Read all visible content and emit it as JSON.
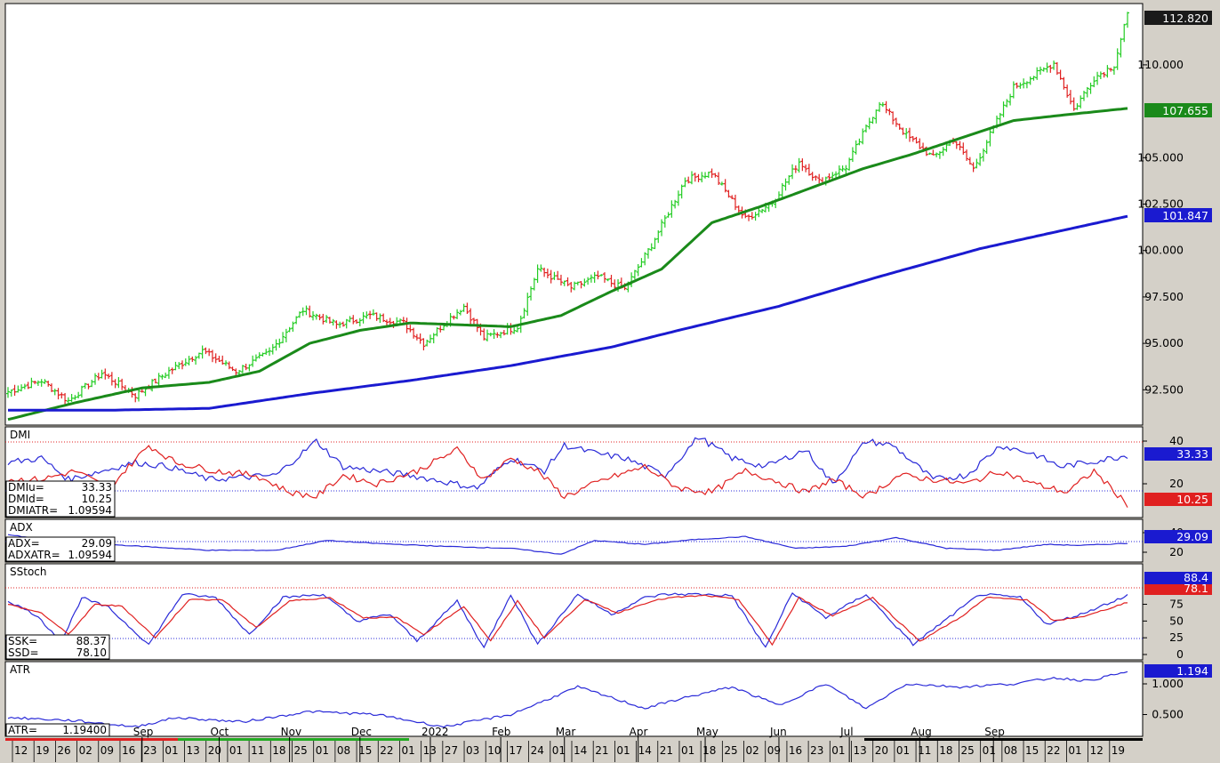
{
  "colors": {
    "up_bar": "#22cc22",
    "down_bar": "#e02020",
    "ma_short": "#1a8a1a",
    "ma_long": "#1a1ad0",
    "dmi_plus": "#2a2ad8",
    "dmi_minus": "#e02020",
    "price_tag": "#1a1a1a",
    "ma_short_tag": "#1a8a1a",
    "ma_long_tag": "#1a1ad0",
    "blue_tag": "#1a1ad0",
    "red_tag": "#e02020"
  },
  "chart_data": {
    "type": "candlestick",
    "price": {
      "scale": [
        90.6,
        113.3
      ],
      "ticks": [
        "92.500",
        "95.000",
        "97.500",
        "100.000",
        "102.500",
        "105.000",
        "110.000"
      ],
      "last_price": "112.820",
      "ma_short_value": "107.655",
      "ma_long_value": "101.847",
      "series_anchors": [
        [
          0,
          92.4
        ],
        [
          10,
          93.0
        ],
        [
          18,
          91.9
        ],
        [
          28,
          93.4
        ],
        [
          38,
          92.2
        ],
        [
          48,
          93.5
        ],
        [
          58,
          94.6
        ],
        [
          68,
          93.5
        ],
        [
          78,
          94.5
        ],
        [
          88,
          96.8
        ],
        [
          98,
          96.0
        ],
        [
          108,
          96.5
        ],
        [
          118,
          96.1
        ],
        [
          124,
          95.0
        ],
        [
          132,
          96.4
        ],
        [
          136,
          97.0
        ],
        [
          142,
          95.3
        ],
        [
          152,
          95.9
        ],
        [
          158,
          99.0
        ],
        [
          168,
          98.0
        ],
        [
          176,
          98.6
        ],
        [
          184,
          97.9
        ],
        [
          192,
          100.3
        ],
        [
          202,
          103.8
        ],
        [
          210,
          104.2
        ],
        [
          220,
          101.7
        ],
        [
          228,
          102.6
        ],
        [
          236,
          104.8
        ],
        [
          242,
          103.7
        ],
        [
          250,
          104.5
        ],
        [
          260,
          108.0
        ],
        [
          268,
          106.2
        ],
        [
          276,
          105.0
        ],
        [
          282,
          106.0
        ],
        [
          288,
          104.4
        ],
        [
          300,
          108.8
        ],
        [
          306,
          109.4
        ],
        [
          312,
          110.1
        ],
        [
          318,
          107.6
        ],
        [
          324,
          109.3
        ],
        [
          330,
          110.0
        ],
        [
          334,
          112.8
        ]
      ],
      "ma_short_anchors": [
        [
          0,
          90.9
        ],
        [
          20,
          91.8
        ],
        [
          40,
          92.6
        ],
        [
          60,
          92.9
        ],
        [
          75,
          93.5
        ],
        [
          90,
          95.0
        ],
        [
          105,
          95.7
        ],
        [
          120,
          96.1
        ],
        [
          135,
          96.0
        ],
        [
          150,
          95.9
        ],
        [
          165,
          96.5
        ],
        [
          180,
          97.8
        ],
        [
          195,
          99.0
        ],
        [
          210,
          101.5
        ],
        [
          225,
          102.4
        ],
        [
          240,
          103.4
        ],
        [
          255,
          104.4
        ],
        [
          270,
          105.2
        ],
        [
          285,
          106.1
        ],
        [
          300,
          107.0
        ],
        [
          315,
          107.3
        ],
        [
          334,
          107.655
        ]
      ],
      "ma_long_anchors": [
        [
          0,
          91.4
        ],
        [
          30,
          91.4
        ],
        [
          60,
          91.5
        ],
        [
          90,
          92.3
        ],
        [
          120,
          93.0
        ],
        [
          150,
          93.8
        ],
        [
          180,
          94.8
        ],
        [
          200,
          95.7
        ],
        [
          230,
          97.0
        ],
        [
          260,
          98.6
        ],
        [
          290,
          100.1
        ],
        [
          310,
          100.9
        ],
        [
          334,
          101.847
        ]
      ]
    },
    "dmi": {
      "label": "DMI",
      "ticks": [
        "40",
        "20"
      ],
      "readouts": [
        {
          "label": "DMIu=",
          "value": "33.33"
        },
        {
          "label": "DMId=",
          "value": "10.25"
        },
        {
          "label": "DMIATR=",
          "value": "1.09594"
        }
      ],
      "plus_last": "33.33",
      "minus_last": "10.25",
      "plus_anchors": [
        [
          0,
          30
        ],
        [
          10,
          32
        ],
        [
          18,
          22
        ],
        [
          28,
          26
        ],
        [
          38,
          30
        ],
        [
          48,
          28
        ],
        [
          60,
          22
        ],
        [
          80,
          24
        ],
        [
          92,
          40
        ],
        [
          100,
          28
        ],
        [
          110,
          26
        ],
        [
          120,
          24
        ],
        [
          130,
          21
        ],
        [
          140,
          18
        ],
        [
          150,
          32
        ],
        [
          160,
          26
        ],
        [
          166,
          38
        ],
        [
          176,
          34
        ],
        [
          184,
          32
        ],
        [
          196,
          24
        ],
        [
          206,
          42
        ],
        [
          216,
          32
        ],
        [
          226,
          28
        ],
        [
          238,
          36
        ],
        [
          246,
          20
        ],
        [
          256,
          40
        ],
        [
          264,
          38
        ],
        [
          276,
          22
        ],
        [
          286,
          24
        ],
        [
          296,
          38
        ],
        [
          306,
          34
        ],
        [
          314,
          28
        ],
        [
          322,
          30
        ],
        [
          334,
          33.33
        ]
      ],
      "minus_anchors": [
        [
          0,
          22
        ],
        [
          10,
          22
        ],
        [
          20,
          26
        ],
        [
          30,
          18
        ],
        [
          42,
          38
        ],
        [
          50,
          30
        ],
        [
          62,
          26
        ],
        [
          74,
          24
        ],
        [
          84,
          16
        ],
        [
          92,
          14
        ],
        [
          100,
          24
        ],
        [
          110,
          20
        ],
        [
          122,
          26
        ],
        [
          134,
          36
        ],
        [
          142,
          22
        ],
        [
          150,
          32
        ],
        [
          158,
          26
        ],
        [
          166,
          14
        ],
        [
          178,
          22
        ],
        [
          190,
          28
        ],
        [
          200,
          18
        ],
        [
          210,
          16
        ],
        [
          220,
          26
        ],
        [
          228,
          22
        ],
        [
          238,
          16
        ],
        [
          246,
          22
        ],
        [
          256,
          14
        ],
        [
          266,
          24
        ],
        [
          276,
          22
        ],
        [
          286,
          20
        ],
        [
          296,
          26
        ],
        [
          306,
          20
        ],
        [
          316,
          16
        ],
        [
          324,
          26
        ],
        [
          334,
          10.25
        ]
      ]
    },
    "adx": {
      "label": "ADX",
      "ticks": [
        "40",
        "20"
      ],
      "readouts": [
        {
          "label": "ADX=",
          "value": "29.09"
        },
        {
          "label": "ADXATR=",
          "value": "1.09594"
        }
      ],
      "last": "29.09",
      "anchors": [
        [
          0,
          38
        ],
        [
          12,
          32
        ],
        [
          30,
          28
        ],
        [
          45,
          25
        ],
        [
          60,
          22
        ],
        [
          80,
          22
        ],
        [
          95,
          32
        ],
        [
          110,
          29
        ],
        [
          130,
          26
        ],
        [
          150,
          24
        ],
        [
          165,
          18
        ],
        [
          175,
          32
        ],
        [
          190,
          28
        ],
        [
          205,
          33
        ],
        [
          220,
          36
        ],
        [
          235,
          24
        ],
        [
          250,
          26
        ],
        [
          265,
          35
        ],
        [
          280,
          24
        ],
        [
          295,
          22
        ],
        [
          310,
          28
        ],
        [
          320,
          27
        ],
        [
          334,
          29.09
        ]
      ]
    },
    "sstoch": {
      "label": "SStoch",
      "ticks": [
        "75",
        "50",
        "25",
        "0"
      ],
      "readouts": [
        {
          "label": "SSK=",
          "value": "88.37"
        },
        {
          "label": "SSD=",
          "value": "78.10"
        }
      ],
      "k_last": "88.4",
      "d_last": "78.1",
      "k_anchors": [
        [
          0,
          80
        ],
        [
          8,
          60
        ],
        [
          16,
          20
        ],
        [
          22,
          85
        ],
        [
          30,
          70
        ],
        [
          42,
          15
        ],
        [
          52,
          90
        ],
        [
          62,
          85
        ],
        [
          72,
          30
        ],
        [
          82,
          85
        ],
        [
          94,
          90
        ],
        [
          104,
          50
        ],
        [
          114,
          60
        ],
        [
          122,
          20
        ],
        [
          134,
          80
        ],
        [
          142,
          10
        ],
        [
          150,
          90
        ],
        [
          158,
          15
        ],
        [
          170,
          90
        ],
        [
          180,
          60
        ],
        [
          190,
          85
        ],
        [
          196,
          90
        ],
        [
          206,
          90
        ],
        [
          216,
          88
        ],
        [
          226,
          10
        ],
        [
          234,
          92
        ],
        [
          244,
          55
        ],
        [
          256,
          90
        ],
        [
          270,
          15
        ],
        [
          282,
          60
        ],
        [
          290,
          90
        ],
        [
          302,
          85
        ],
        [
          310,
          45
        ],
        [
          320,
          60
        ],
        [
          334,
          88.37
        ]
      ],
      "d_anchors": [
        [
          0,
          75
        ],
        [
          10,
          62
        ],
        [
          18,
          30
        ],
        [
          26,
          75
        ],
        [
          34,
          72
        ],
        [
          44,
          25
        ],
        [
          54,
          82
        ],
        [
          64,
          82
        ],
        [
          74,
          40
        ],
        [
          84,
          80
        ],
        [
          96,
          85
        ],
        [
          106,
          55
        ],
        [
          116,
          55
        ],
        [
          124,
          30
        ],
        [
          136,
          72
        ],
        [
          144,
          20
        ],
        [
          152,
          80
        ],
        [
          160,
          25
        ],
        [
          172,
          82
        ],
        [
          182,
          62
        ],
        [
          192,
          80
        ],
        [
          198,
          85
        ],
        [
          208,
          88
        ],
        [
          218,
          82
        ],
        [
          228,
          15
        ],
        [
          236,
          85
        ],
        [
          246,
          58
        ],
        [
          258,
          85
        ],
        [
          272,
          20
        ],
        [
          284,
          55
        ],
        [
          292,
          85
        ],
        [
          304,
          82
        ],
        [
          312,
          50
        ],
        [
          322,
          58
        ],
        [
          334,
          78.1
        ]
      ]
    },
    "atr": {
      "label": "ATR",
      "ticks": [
        "1.000",
        "0.500"
      ],
      "readouts": [
        {
          "label": "ATR=",
          "value": "1.19400"
        }
      ],
      "last": "1.194",
      "anchors": [
        [
          0,
          0.45
        ],
        [
          20,
          0.4
        ],
        [
          38,
          0.3
        ],
        [
          50,
          0.45
        ],
        [
          70,
          0.38
        ],
        [
          90,
          0.55
        ],
        [
          110,
          0.5
        ],
        [
          130,
          0.3
        ],
        [
          150,
          0.5
        ],
        [
          170,
          0.95
        ],
        [
          190,
          0.6
        ],
        [
          200,
          0.75
        ],
        [
          216,
          0.95
        ],
        [
          230,
          0.65
        ],
        [
          244,
          1.0
        ],
        [
          256,
          0.6
        ],
        [
          268,
          1.0
        ],
        [
          284,
          0.95
        ],
        [
          300,
          1.0
        ],
        [
          312,
          1.1
        ],
        [
          322,
          1.05
        ],
        [
          334,
          1.194
        ]
      ]
    },
    "x_axis": {
      "months": [
        {
          "label": "Sep",
          "i": 40
        },
        {
          "label": "Oct",
          "i": 63
        },
        {
          "label": "Nov",
          "i": 84
        },
        {
          "label": "Dec",
          "i": 105
        },
        {
          "label": "2022",
          "i": 126
        },
        {
          "label": "Feb",
          "i": 147
        },
        {
          "label": "Mar",
          "i": 166
        },
        {
          "label": "Apr",
          "i": 188
        },
        {
          "label": "May",
          "i": 208
        },
        {
          "label": "Jun",
          "i": 230
        },
        {
          "label": "Jul",
          "i": 251
        },
        {
          "label": "Aug",
          "i": 272
        },
        {
          "label": "Sep",
          "i": 294
        }
      ],
      "days": [
        "12",
        "19",
        "26",
        "02",
        "09",
        "16",
        "23",
        "01",
        "13",
        "20",
        "01",
        "11",
        "18",
        "25",
        "01",
        "08",
        "15",
        "22",
        "01",
        "13",
        "27",
        "03",
        "10",
        "17",
        "24",
        "01",
        "14",
        "21",
        "01",
        "14",
        "21",
        "01",
        "18",
        "25",
        "02",
        "09",
        "16",
        "23",
        "01",
        "13",
        "20",
        "01",
        "11",
        "18",
        "25",
        "01",
        "08",
        "15",
        "22",
        "01",
        "12",
        "19"
      ]
    }
  }
}
